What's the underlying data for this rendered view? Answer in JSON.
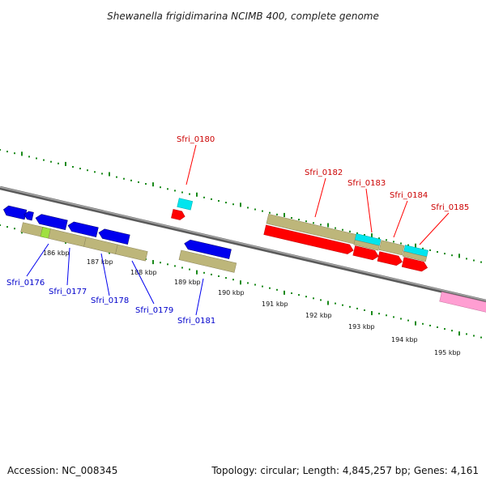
{
  "title": "Shewanella frigidimarina NCIMB 400, complete genome",
  "footer": {
    "accession": "Accession: NC_008345",
    "summary": "Topology: circular; Length: 4,845,257 bp; Genes: 4,161"
  },
  "kbp_labels": [
    "186 kbp",
    "187 kbp",
    "188 kbp",
    "189 kbp",
    "190 kbp",
    "191 kbp",
    "192 kbp",
    "193 kbp",
    "194 kbp",
    "195 kbp"
  ],
  "gene_labels": {
    "forward": [
      "Sfri_0180",
      "Sfri_0182",
      "Sfri_0183",
      "Sfri_0184",
      "Sfri_0185"
    ],
    "reverse": [
      "Sfri_0176",
      "Sfri_0177",
      "Sfri_0178",
      "Sfri_0179",
      "Sfri_0181"
    ]
  },
  "colors": {
    "backbone": "#808080",
    "forward_gene": "#ff0000",
    "reverse_gene": "#0000ee",
    "cds_feature": "#bdb67a",
    "rna_feature": "#00e5ee",
    "misc_feature": "#ff9ed2",
    "highlight": "#a0e040",
    "scale_ticks": "#1a8a1a",
    "forward_label": "#cc0000",
    "reverse_label": "#0000cc"
  }
}
